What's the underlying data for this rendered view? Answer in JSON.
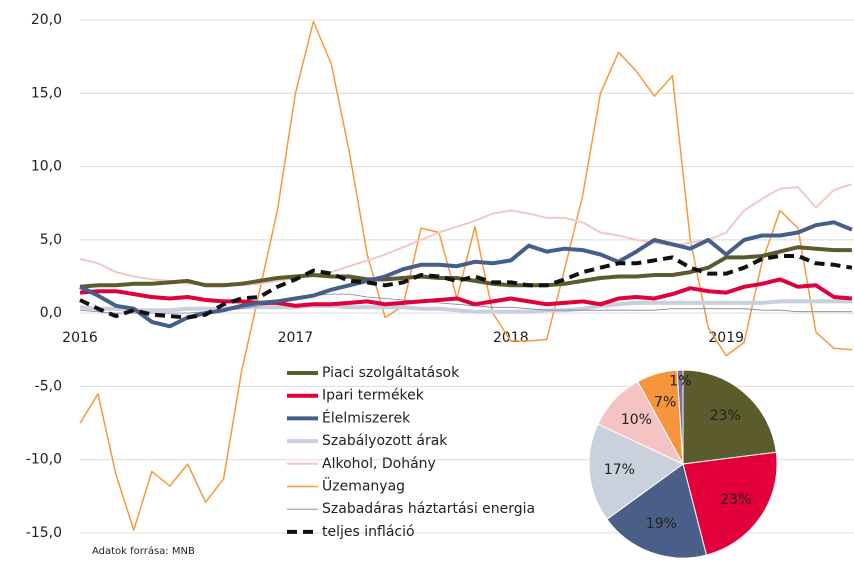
{
  "chart_data": [
    {
      "type": "line",
      "source": "Adatok forrása: MNB",
      "categories": [
        "2016",
        null,
        null,
        null,
        null,
        null,
        null,
        null,
        null,
        null,
        null,
        null,
        "2017",
        null,
        null,
        null,
        null,
        null,
        null,
        null,
        null,
        null,
        null,
        null,
        "2018",
        null,
        null,
        null,
        null,
        null,
        null,
        null,
        null,
        null,
        null,
        null,
        "2019",
        null,
        null,
        null,
        null,
        null,
        null,
        null
      ],
      "ylim": [
        -15,
        20
      ],
      "yticks": [
        {
          "value": -15,
          "label": "-15,0"
        },
        {
          "value": -10,
          "label": "-10,0"
        },
        {
          "value": -5,
          "label": "-5,0"
        },
        {
          "value": 0,
          "label": "0,0"
        },
        {
          "value": 5,
          "label": "5,0"
        },
        {
          "value": 10,
          "label": "10,0"
        },
        {
          "value": 15,
          "label": "15,0"
        },
        {
          "value": 20,
          "label": "20,0"
        }
      ],
      "grid": true,
      "series": [
        {
          "name": "Piaci szolgáltatások",
          "color": "#5b5b2e",
          "values": [
            1.8,
            1.9,
            1.9,
            2,
            2,
            2.1,
            2.2,
            1.9,
            1.9,
            2,
            2.2,
            2.4,
            2.5,
            2.6,
            2.5,
            2.5,
            2.3,
            2.3,
            2.4,
            2.5,
            2.4,
            2.4,
            2.2,
            2,
            1.9,
            1.9,
            1.9,
            2,
            2.2,
            2.4,
            2.5,
            2.5,
            2.6,
            2.6,
            2.8,
            3.1,
            3.8,
            3.8,
            3.9,
            4.2,
            4.5,
            4.4,
            4.3,
            4.3
          ]
        },
        {
          "name": "Ipari termékek",
          "color": "#e0003c",
          "values": [
            1.4,
            1.5,
            1.5,
            1.3,
            1.1,
            1,
            1.1,
            0.9,
            0.8,
            0.8,
            0.7,
            0.7,
            0.5,
            0.6,
            0.6,
            0.7,
            0.8,
            0.6,
            0.7,
            0.8,
            0.9,
            1,
            0.6,
            0.8,
            1,
            0.8,
            0.6,
            0.7,
            0.8,
            0.6,
            1,
            1.1,
            1,
            1.3,
            1.7,
            1.5,
            1.4,
            1.8,
            2,
            2.3,
            1.8,
            1.9,
            1.1,
            1
          ]
        },
        {
          "name": "Élelmiszerek",
          "color": "#465e8a",
          "values": [
            1.8,
            1.2,
            0.5,
            0.3,
            -0.6,
            -0.9,
            -0.3,
            0,
            0.2,
            0.5,
            0.7,
            0.8,
            1,
            1.2,
            1.6,
            1.9,
            2.2,
            2.5,
            3,
            3.3,
            3.3,
            3.2,
            3.5,
            3.4,
            3.6,
            4.6,
            4.2,
            4.4,
            4.3,
            4,
            3.5,
            4.2,
            5,
            4.7,
            4.4,
            5,
            4,
            5,
            5.3,
            5.3,
            5.5,
            6,
            6.2,
            5.7
          ]
        },
        {
          "name": "Szabályozott árak",
          "color": "#c8d0dc",
          "values": [
            0.4,
            0.3,
            0.3,
            0.2,
            0.2,
            0.2,
            0.3,
            0.3,
            0.3,
            0.4,
            0.4,
            0.4,
            0.4,
            0.5,
            0.5,
            0.4,
            0.4,
            0.4,
            0.4,
            0.3,
            0.3,
            0.2,
            0.1,
            0.1,
            0.1,
            0.1,
            0.2,
            0.2,
            0.3,
            0.5,
            0.6,
            0.7,
            0.7,
            0.7,
            0.7,
            0.7,
            0.7,
            0.7,
            0.7,
            0.8,
            0.8,
            0.8,
            0.8,
            0.8
          ]
        },
        {
          "name": "Alkohol, Dohány",
          "color": "#f4c6c6",
          "values": [
            3.7,
            3.4,
            2.8,
            2.5,
            2.3,
            2.2,
            2,
            2,
            2,
            1.9,
            2,
            2.2,
            2.4,
            2.6,
            2.8,
            3.2,
            3.6,
            4,
            4.5,
            5,
            5.5,
            5.9,
            6.3,
            6.8,
            7,
            6.8,
            6.5,
            6.5,
            6.2,
            5.5,
            5.3,
            5,
            4.8,
            4.6,
            4.8,
            5,
            5.5,
            7,
            7.8,
            8.5,
            8.6,
            7.2,
            8.4,
            8.8
          ]
        },
        {
          "name": "Üzemanyag",
          "color": "#f59a3c",
          "values": [
            -7.5,
            -5.5,
            -11,
            -14.8,
            -10.8,
            -11.8,
            -10.3,
            -12.9,
            -11.3,
            -4,
            1.5,
            7,
            15,
            19.9,
            17,
            11,
            4,
            -0.3,
            0.5,
            5.8,
            5.5,
            1,
            5.9,
            0,
            -1.9,
            -1.9,
            -1.8,
            3,
            8,
            15,
            17.8,
            16.5,
            14.8,
            16.2,
            5,
            -1,
            -2.9,
            -2,
            3.5,
            7,
            5.8,
            -1.3,
            -2.4,
            -2.5
          ]
        },
        {
          "name": "Szabadáras háztartási energia",
          "color": "#8a7ca0",
          "values": [
            0.2,
            0.1,
            0,
            0,
            0,
            0,
            0,
            0.1,
            0.2,
            0.3,
            0.5,
            0.7,
            1,
            1.2,
            1.3,
            1.3,
            1.1,
            1,
            0.9,
            0.8,
            0.7,
            0.6,
            0.5,
            0.4,
            0.4,
            0.3,
            0.2,
            0.2,
            0.2,
            0.2,
            0.2,
            0.2,
            0.2,
            0.3,
            0.3,
            0.3,
            0.3,
            0.3,
            0.2,
            0.2,
            0.1,
            0.1,
            0.1,
            0.1
          ]
        },
        {
          "name": "teljes infláció",
          "color": "#111111",
          "dashed": true,
          "values": [
            0.9,
            0.3,
            -0.2,
            0.2,
            -0.1,
            -0.2,
            -0.3,
            -0.1,
            0.6,
            1,
            1.1,
            1.8,
            2.3,
            2.9,
            2.7,
            2.2,
            2.1,
            1.9,
            2.1,
            2.6,
            2.5,
            2.2,
            2.5,
            2.1,
            2.1,
            1.9,
            1.9,
            2.3,
            2.8,
            3.1,
            3.4,
            3.4,
            3.6,
            3.8,
            3.1,
            2.7,
            2.7,
            3.1,
            3.7,
            3.9,
            3.9,
            3.4,
            3.3,
            3.1
          ]
        }
      ]
    },
    {
      "type": "pie",
      "values": [
        23,
        23,
        19,
        17,
        10,
        7,
        1
      ],
      "value_labels": [
        "23%",
        "23%",
        "19%",
        "17%",
        "10%",
        "7%",
        "1%"
      ],
      "colors": [
        "#5b5b2e",
        "#e3003a",
        "#4a5f87",
        "#c9d1dc",
        "#f5c3c3",
        "#f7953c",
        "#7d6ea0"
      ]
    }
  ]
}
